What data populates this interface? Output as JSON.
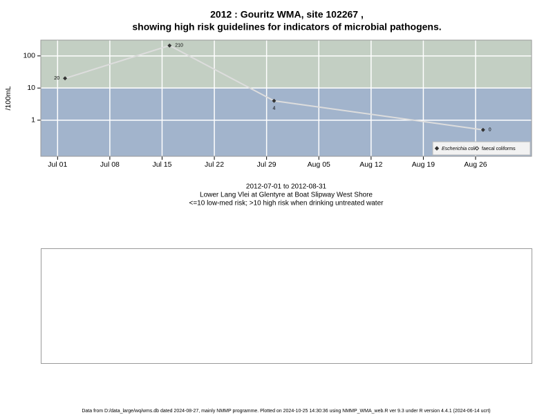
{
  "chart_data": {
    "type": "line",
    "title": [
      "2012 : Gouritz WMA, site 102267 ,",
      "showing high risk guidelines for indicators of microbial pathogens."
    ],
    "ylabel": "/100mL",
    "caption": [
      "2012-07-01 to 2012-08-31",
      "Lower Lang Vlei at Glentyre at Boat Slipway West Shore",
      "<=10 low-med risk; >10 high risk when drinking untreated water"
    ],
    "footer": "Data from D:/data_large/wq/wms.db dated 2024-08-27, mainly NMMP programme. Plotted on 2024-10-25 14:30:36 using NMMP_WMA_web.R ver 9.3 under R version 4.4.1 (2024-06-14 ucrt)",
    "x": [
      "2012-07-02",
      "2012-07-16",
      "2012-07-30",
      "2012-08-27"
    ],
    "series": [
      {
        "name": "Escherichia coli",
        "color": "#333333",
        "line_color": "#dddddd",
        "values": [
          20,
          210,
          4,
          0.5
        ],
        "value_labels": [
          "20",
          "210",
          "4",
          "0"
        ]
      },
      {
        "name": "faecal coliforms",
        "color": "#333333",
        "values": [
          null,
          null,
          null,
          null
        ]
      }
    ],
    "xlim": [
      "2012-06-28T18:00:00Z",
      "2012-09-02T12:00:00Z"
    ],
    "xticks": [
      {
        "value": "2012-07-01",
        "label": "Jul 01"
      },
      {
        "value": "2012-07-08",
        "label": "Jul 08"
      },
      {
        "value": "2012-07-15",
        "label": "Jul 15"
      },
      {
        "value": "2012-07-22",
        "label": "Jul 22"
      },
      {
        "value": "2012-07-29",
        "label": "Jul 29"
      },
      {
        "value": "2012-08-05",
        "label": "Aug 05"
      },
      {
        "value": "2012-08-12",
        "label": "Aug 12"
      },
      {
        "value": "2012-08-19",
        "label": "Aug 19"
      },
      {
        "value": "2012-08-26",
        "label": "Aug 26"
      }
    ],
    "ylim": [
      0.075,
      310
    ],
    "yticks": [
      1,
      10,
      100
    ],
    "log_y": true,
    "grid": true,
    "threshold": 10,
    "high_color": "#c3cfc3",
    "low_color": "#a2b4cc",
    "legend": "bottom-right"
  }
}
